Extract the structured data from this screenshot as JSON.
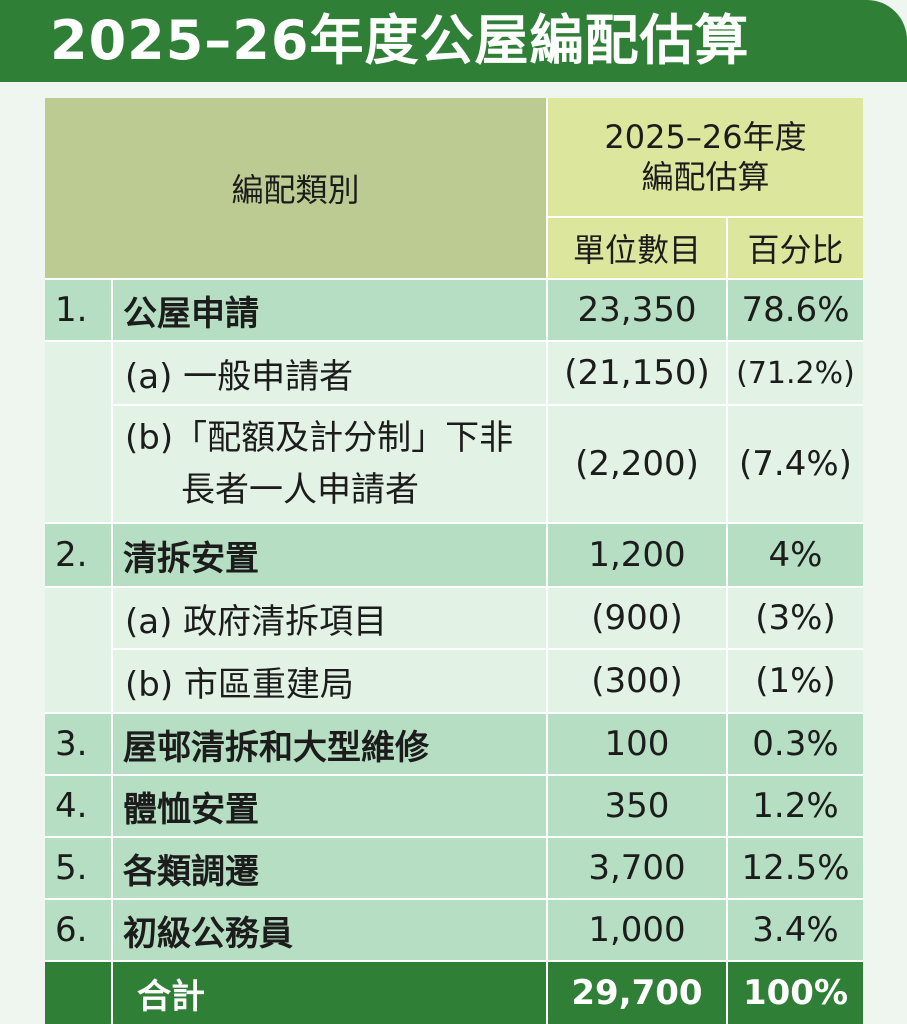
{
  "title": "2025–26年度公屋編配估算",
  "header": {
    "category": "編配類別",
    "estimate_line1": "2025–26年度",
    "estimate_line2": "編配估算",
    "units": "單位數目",
    "percent": "百分比"
  },
  "rows": [
    {
      "index": "1.",
      "label": "公屋申請",
      "units": "23,350",
      "percent": "78.6%"
    },
    {
      "index": "",
      "label": "(a) 一般申請者",
      "units": "(21,150)",
      "percent": "(71.2%)"
    },
    {
      "index": "",
      "label_line1": "(b)「配額及計分制」下非",
      "label_line2": "長者一人申請者",
      "units": "(2,200)",
      "percent": "(7.4%)"
    },
    {
      "index": "2.",
      "label": "清拆安置",
      "units": "1,200",
      "percent": "4%"
    },
    {
      "index": "",
      "label": "(a) 政府清拆項目",
      "units": "(900)",
      "percent": "(3%)"
    },
    {
      "index": "",
      "label": "(b) 市區重建局",
      "units": "(300)",
      "percent": "(1%)"
    },
    {
      "index": "3.",
      "label": "屋邨清拆和大型維修",
      "units": "100",
      "percent": "0.3%"
    },
    {
      "index": "4.",
      "label": "體恤安置",
      "units": "350",
      "percent": "1.2%"
    },
    {
      "index": "5.",
      "label": "各類調遷",
      "units": "3,700",
      "percent": "12.5%"
    },
    {
      "index": "6.",
      "label": "初級公務員",
      "units": "1,000",
      "percent": "3.4%"
    }
  ],
  "total": {
    "label": "合計",
    "units": "29,700",
    "percent": "100%"
  }
}
